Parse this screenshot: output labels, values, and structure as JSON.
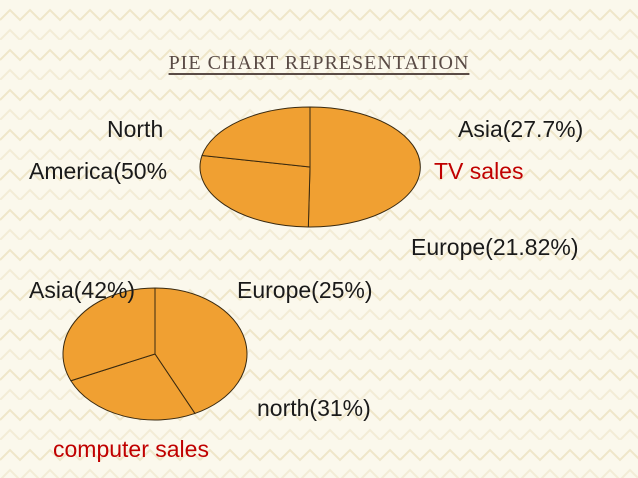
{
  "slide": {
    "title": "PIE CHART REPRESENTATION"
  },
  "colors": {
    "pie_fill": "#f0a032",
    "pie_stroke": "#3a2a10",
    "accent_red": "#c00000"
  },
  "chart_data": [
    {
      "type": "pie",
      "title": "TV sales",
      "slices": [
        {
          "label_lines": [
            "North",
            "America(50%"
          ],
          "value": 50
        },
        {
          "label_lines": [
            "Asia(27.7%)"
          ],
          "value": 27.7
        },
        {
          "label_lines": [
            "Europe(21.82%)"
          ],
          "value": 21.82
        }
      ],
      "start_angle_deg": -90
    },
    {
      "type": "pie",
      "title": "computer sales",
      "slices": [
        {
          "label_lines": [
            "Asia(42%)"
          ],
          "value": 42
        },
        {
          "label_lines": [
            "Europe(25%)"
          ],
          "value": 25
        },
        {
          "label_lines": [
            "north(31%)"
          ],
          "value": 31
        }
      ],
      "start_angle_deg": -90
    }
  ]
}
